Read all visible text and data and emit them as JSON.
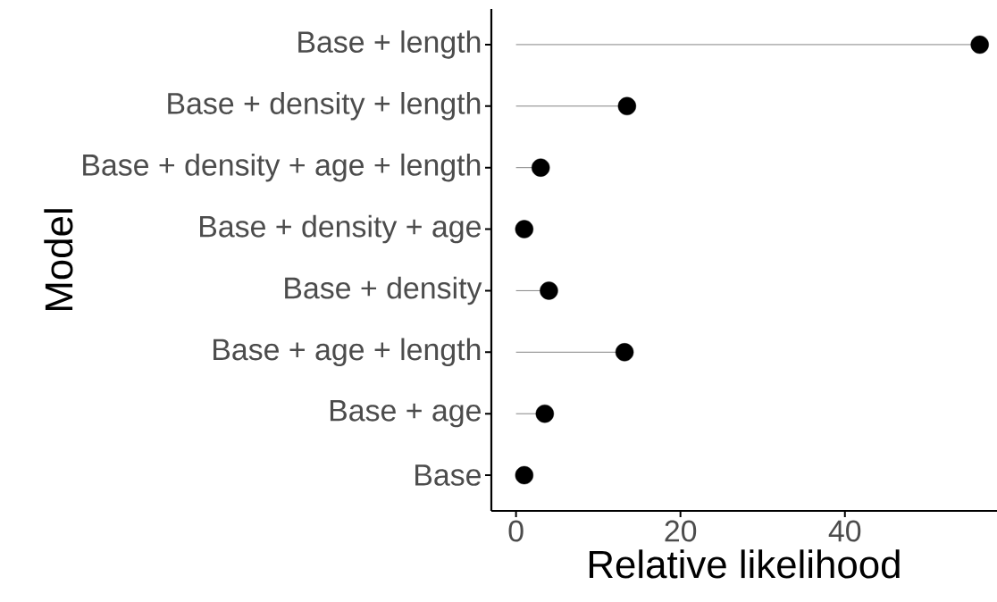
{
  "chart_data": {
    "type": "lollipop",
    "orientation": "horizontal",
    "xlabel": "Relative likelihood",
    "ylabel": "Model",
    "categories": [
      "Base + length",
      "Base + density + length",
      "Base + density + age + length",
      "Base + density + age",
      "Base + density",
      "Base + age + length",
      "Base + age",
      "Base"
    ],
    "values": [
      56.4,
      13.5,
      3.0,
      1.0,
      4.0,
      13.2,
      3.5,
      1.0
    ],
    "color": "#000000",
    "marker": "circle",
    "xlim": [
      -3,
      58.5
    ],
    "xticks": [
      0,
      20,
      40
    ]
  }
}
